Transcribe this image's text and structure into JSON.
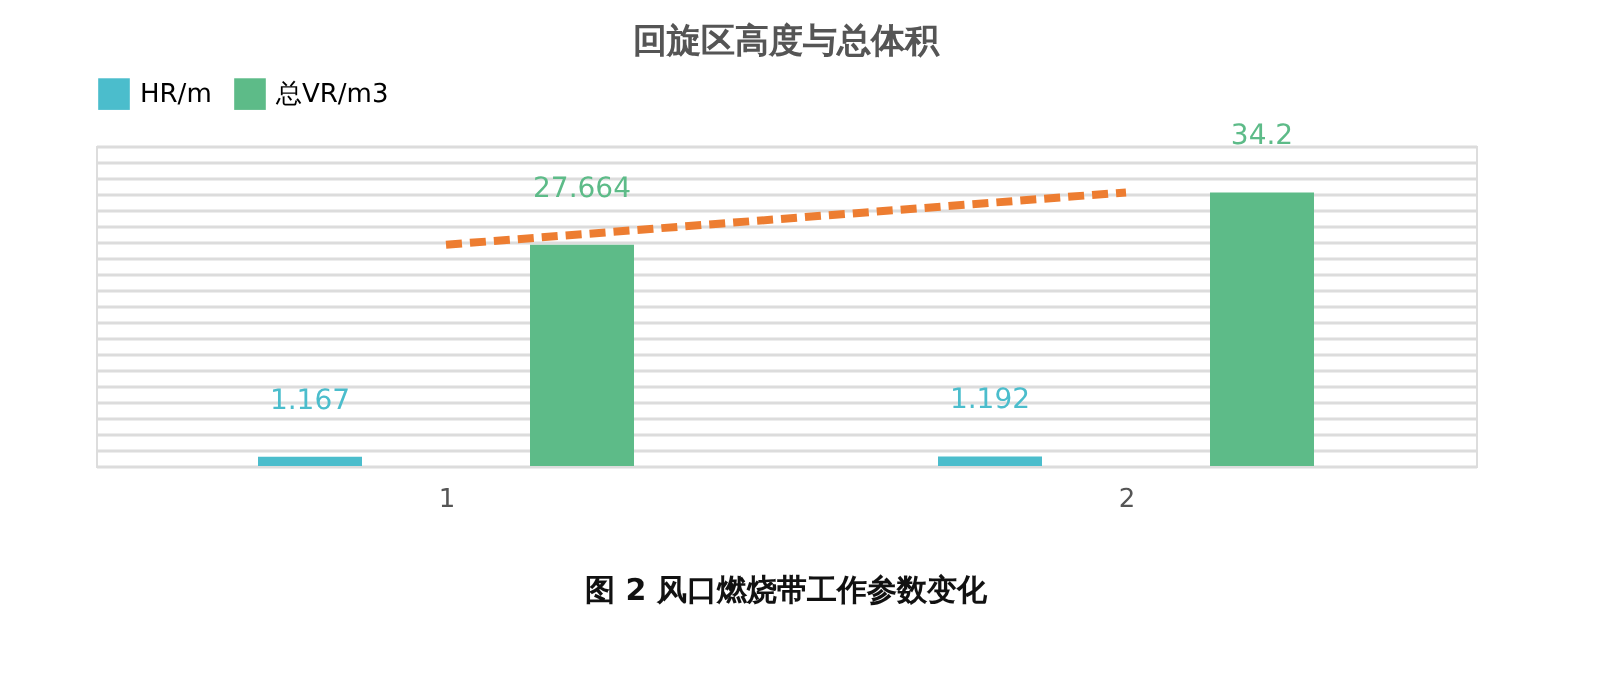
{
  "chart_data": {
    "type": "bar",
    "title": "回旋区高度与总体积",
    "categories": [
      "1",
      "2"
    ],
    "series": [
      {
        "name": "HR/m",
        "color": "#4bbdcc",
        "values": [
          1.167,
          1.192
        ]
      },
      {
        "name": "总VR/m3",
        "color": "#5dbb88",
        "values": [
          27.664,
          34.2
        ]
      },
      {
        "type": "line",
        "color": "#ed7d31",
        "line_style": "dashed",
        "values": [
          27.664,
          34.2
        ],
        "value_labels": [
          null,
          null
        ]
      }
    ],
    "data_labels": true,
    "ylim": [
      0,
      40
    ],
    "grid": "y",
    "tick_labels": "x",
    "legend": "top",
    "annotations": [
      "图 2    风口燃烧带工作参数变化"
    ]
  }
}
